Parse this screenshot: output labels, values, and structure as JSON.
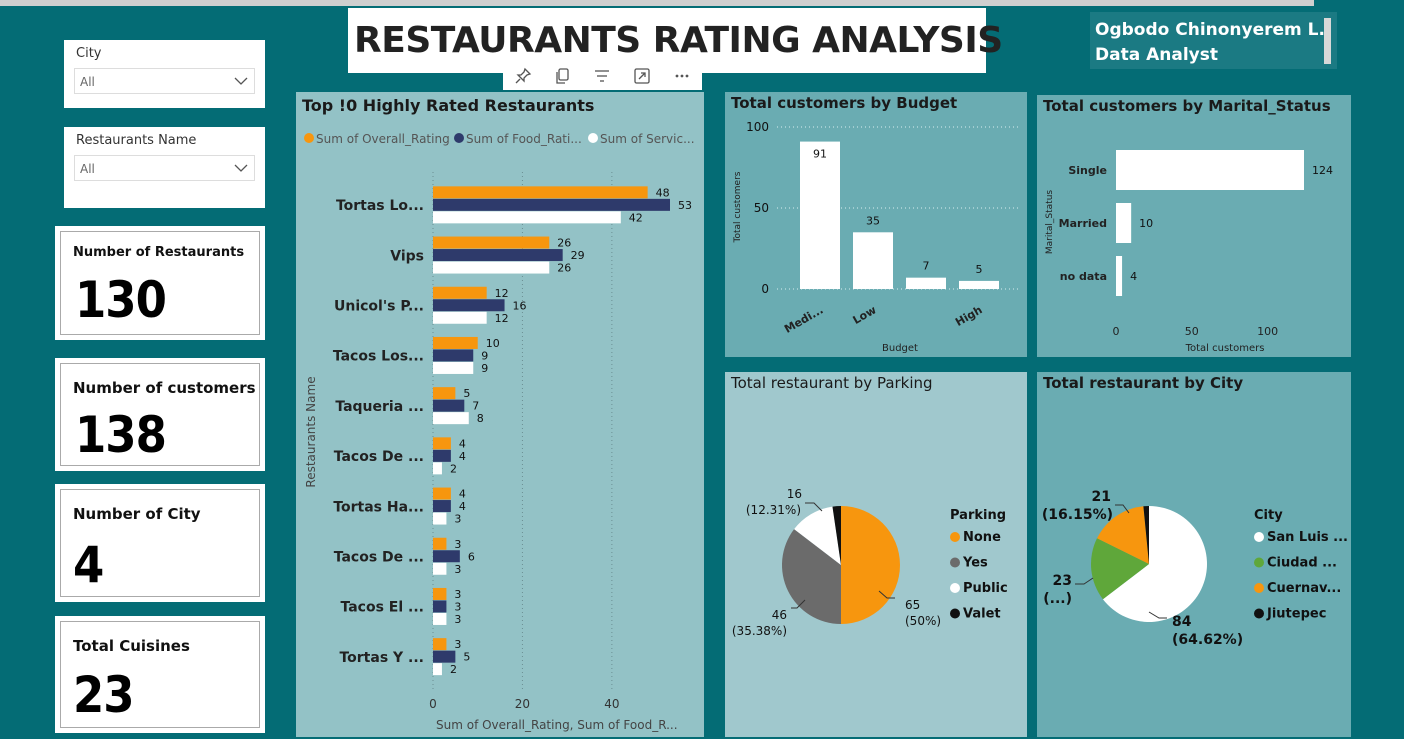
{
  "header": {
    "title": "RESTAURANTS RATING ANALYSIS",
    "author_name": "Ogbodo Chinonyerem L.",
    "author_role": "Data Analyst"
  },
  "toolbar": {
    "icons": [
      "pin-icon",
      "copy-icon",
      "filter-icon",
      "focus-mode-icon",
      "more-options-icon"
    ]
  },
  "slicers": {
    "city": {
      "label": "City",
      "value": "All"
    },
    "restaurant_name": {
      "label": "Restaurants Name",
      "value": "All"
    }
  },
  "cards": {
    "restaurants": {
      "title": "Number of Restaurants",
      "value": "130"
    },
    "customers": {
      "title": "Number of customers",
      "value": "138"
    },
    "cities": {
      "title": "Number of City",
      "value": "4"
    },
    "cuisines": {
      "title": "Total Cuisines",
      "value": "23"
    }
  },
  "chart_data": [
    {
      "id": "top_rated",
      "type": "bar",
      "orientation": "horizontal",
      "title": "Top !0 Highly Rated Restaurants",
      "xlabel": "Sum of Overall_Rating, Sum of Food_R...",
      "ylabel": "Restaurants Name",
      "xlim": [
        0,
        53
      ],
      "xticks": [
        0,
        20,
        40
      ],
      "grid": true,
      "legend_position": "top",
      "legend_labels": [
        "Sum of Overall_Rating",
        "Sum of Food_Rati...",
        "Sum of Servic..."
      ],
      "categories": [
        "Tortas Lo...",
        "Vips",
        "Unicol's P...",
        "Tacos Los...",
        "Taqueria ...",
        "Tacos De ...",
        "Tortas Ha...",
        "Tacos De ...",
        "Tacos El ...",
        "Tortas Y ..."
      ],
      "series": [
        {
          "name": "Sum of Overall_Rating",
          "color": "#f7960e",
          "values": [
            48,
            26,
            12,
            10,
            5,
            4,
            4,
            3,
            3,
            3
          ]
        },
        {
          "name": "Sum of Food_Rating",
          "color": "#2e3a6b",
          "values": [
            53,
            29,
            16,
            9,
            7,
            4,
            4,
            6,
            3,
            5
          ]
        },
        {
          "name": "Sum of Service_Rating",
          "color": "#ffffff",
          "values": [
            42,
            26,
            12,
            9,
            8,
            2,
            3,
            3,
            3,
            2
          ]
        }
      ]
    },
    {
      "id": "budget",
      "type": "bar",
      "orientation": "vertical",
      "title": "Total customers by Budget",
      "xlabel": "Budget",
      "ylabel": "Total customers",
      "ylim": [
        0,
        100
      ],
      "yticks": [
        0,
        50,
        100
      ],
      "grid": true,
      "categories": [
        "Medi...",
        "Low",
        "",
        "High"
      ],
      "values": [
        91,
        35,
        7,
        5
      ],
      "color": "#ffffff"
    },
    {
      "id": "marital",
      "type": "bar",
      "orientation": "horizontal",
      "title": "Total customers by Marital_Status",
      "xlabel": "Total customers",
      "ylabel": "Marital_Status",
      "xlim": [
        0,
        124
      ],
      "xticks": [
        0,
        50,
        100
      ],
      "categories": [
        "Single",
        "Married",
        "no data"
      ],
      "values": [
        124,
        10,
        4
      ],
      "color": "#ffffff"
    },
    {
      "id": "parking",
      "type": "pie",
      "title": "Total restaurant by Parking",
      "legend_title": "Parking",
      "legend_position": "right",
      "slices": [
        {
          "label": "None",
          "value": 65,
          "pct": "50%",
          "color": "#f7960e"
        },
        {
          "label": "Yes",
          "value": 46,
          "pct": "35.38%",
          "color": "#6b6b6b"
        },
        {
          "label": "Public",
          "value": 16,
          "pct": "12.31%",
          "color": "#ffffff"
        },
        {
          "label": "Valet",
          "value": 3,
          "pct": "",
          "color": "#111111"
        }
      ],
      "data_labels": [
        {
          "value": "65",
          "pct": "(50%)"
        },
        {
          "value": "46",
          "pct": "(35.38%)"
        },
        {
          "value": "16",
          "pct": "(12.31%)"
        }
      ]
    },
    {
      "id": "city",
      "type": "pie",
      "title": "Total restaurant by City",
      "legend_title": "City",
      "legend_position": "right",
      "slices": [
        {
          "label": "San Luis ...",
          "value": 84,
          "pct": "64.62%",
          "color": "#ffffff"
        },
        {
          "label": "Ciudad ...",
          "value": 23,
          "pct": "",
          "color": "#5fa73a"
        },
        {
          "label": "Cuernav...",
          "value": 21,
          "pct": "16.15%",
          "color": "#f7960e"
        },
        {
          "label": "Jiutepec",
          "value": 2,
          "pct": "",
          "color": "#111111"
        }
      ],
      "data_labels": [
        {
          "value": "84",
          "pct": "(64.62%)"
        },
        {
          "value": "23",
          "pct": "(...)"
        },
        {
          "value": "21",
          "pct": "(16.15%)"
        }
      ]
    }
  ]
}
